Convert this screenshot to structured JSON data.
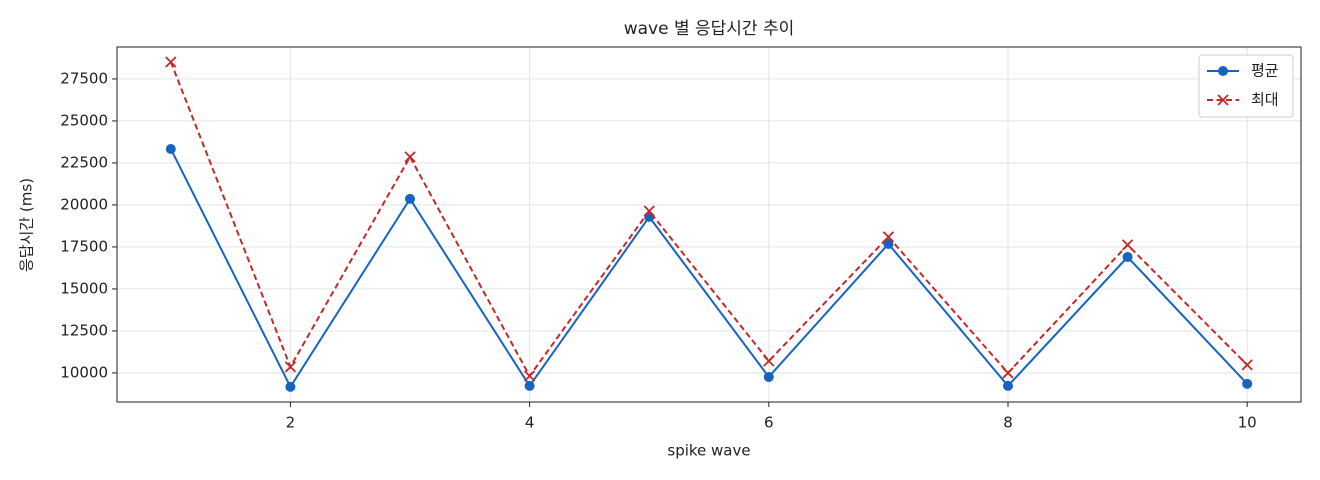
{
  "chart_data": {
    "type": "line",
    "title": "wave 별 응답시간 추이",
    "x_label": "spike wave",
    "y_label": "응답시간 (ms)",
    "x": [
      1,
      2,
      3,
      4,
      5,
      6,
      7,
      8,
      9,
      10
    ],
    "series": [
      {
        "name": "평균",
        "color": "#1565c0",
        "marker": "o",
        "linestyle": "solid",
        "values": [
          23330,
          9170,
          20360,
          9230,
          19290,
          9760,
          17680,
          9230,
          16900,
          9350
        ]
      },
      {
        "name": "최대",
        "color": "#c62828",
        "marker": "x",
        "linestyle": "dashed",
        "values": [
          28510,
          10360,
          22860,
          9820,
          19640,
          10710,
          18100,
          10000,
          17620,
          10480
        ]
      }
    ],
    "xlim": [
      0.55,
      10.45
    ],
    "xticks": [
      2,
      4,
      6,
      8,
      10
    ],
    "ylim": [
      8270,
      29400
    ],
    "yticks": [
      10000,
      12500,
      15000,
      17500,
      20000,
      22500,
      25000,
      27500
    ],
    "grid": true,
    "legend": "upper right"
  }
}
